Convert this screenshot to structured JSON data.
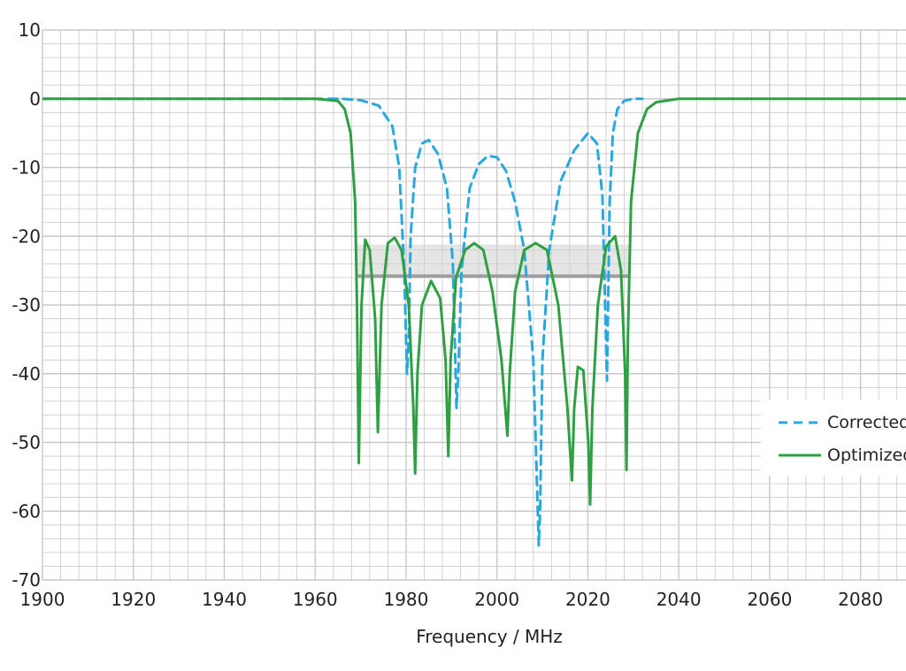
{
  "chart_data": {
    "type": "line",
    "title": "",
    "xlabel": "Frequency / MHz",
    "ylabel": "",
    "xlim": [
      1900,
      2090
    ],
    "ylim": [
      -70,
      10
    ],
    "xticks": [
      1900,
      1920,
      1940,
      1960,
      1980,
      2000,
      2020,
      2040,
      2060,
      2080
    ],
    "yticks": [
      10,
      0,
      -10,
      -20,
      -30,
      -40,
      -50,
      -60,
      -70
    ],
    "grid": true,
    "legend_position": "right",
    "colors": {
      "corrected": "#29a8e0",
      "optimized": "#2ea043",
      "band": "#9e9e9e",
      "grid": "#c8c8c8"
    },
    "spec_band": {
      "x": [
        1969,
        2029
      ],
      "y_top": -21.2,
      "y_bottom": -25.8
    },
    "series": [
      {
        "name": "Corrected",
        "style": "dashed",
        "x": [
          1900,
          1960,
          1966,
          1970,
          1974,
          1977,
          1978.5,
          1979.6,
          1980.2,
          1980.6,
          1981,
          1982,
          1983.5,
          1985,
          1987,
          1989,
          1990.3,
          1991.1,
          1991.5,
          1992.2,
          1994,
          1996,
          1998,
          2000,
          2002,
          2004,
          2006,
          2008,
          2009.2,
          2009.5,
          2010,
          2011.5,
          2014,
          2017,
          2020,
          2022,
          2023.2,
          2023.8,
          2024.2,
          2024.8,
          2025.5,
          2026.5,
          2028,
          2030,
          2032
        ],
        "y": [
          0,
          0,
          0,
          -0.2,
          -1,
          -4,
          -10,
          -25,
          -40,
          -35,
          -20,
          -10,
          -6.5,
          -6,
          -8,
          -13,
          -24,
          -45,
          -40,
          -25,
          -13,
          -9.5,
          -8.3,
          -8.5,
          -10.5,
          -15,
          -22,
          -38,
          -65,
          -60,
          -38,
          -22,
          -12,
          -7.5,
          -5,
          -6.5,
          -14,
          -30,
          -41,
          -15,
          -5,
          -1.5,
          -0.3,
          0,
          0
        ]
      },
      {
        "name": "Optimized",
        "style": "solid",
        "x": [
          1900,
          1960,
          1965,
          1966.5,
          1967.8,
          1968.8,
          1969.2,
          1969.6,
          1970.2,
          1971,
          1972,
          1973.2,
          1973.8,
          1974.6,
          1976,
          1977.5,
          1979,
          1980.6,
          1981.6,
          1982,
          1982.5,
          1983.5,
          1985.5,
          1987.5,
          1988.7,
          1989.3,
          1989.8,
          1991,
          1993,
          1995,
          1997,
          1999,
          2001,
          2002.3,
          2002.8,
          2004,
          2006,
          2008.5,
          2011,
          2013.5,
          2015.5,
          2016.5,
          2017,
          2017.8,
          2019,
          2020.1,
          2020.5,
          2021,
          2022.2,
          2024,
          2026,
          2027.3,
          2028.2,
          2028.5,
          2028.8,
          2029.5,
          2031,
          2033,
          2035,
          2040,
          2090
        ],
        "y": [
          0,
          0,
          -0.3,
          -1.5,
          -5,
          -15,
          -30,
          -53,
          -30,
          -20.5,
          -22,
          -32,
          -48.5,
          -30,
          -21,
          -20.2,
          -22,
          -30,
          -45,
          -54.5,
          -40,
          -30,
          -26.5,
          -29,
          -38,
          -52,
          -38,
          -26,
          -22,
          -21,
          -22,
          -28,
          -38,
          -49,
          -40,
          -28,
          -22,
          -21,
          -22,
          -30,
          -45,
          -55.5,
          -45,
          -39,
          -39.5,
          -50,
          -59,
          -45,
          -30,
          -21.5,
          -20,
          -25,
          -40,
          -54,
          -35,
          -15,
          -5,
          -1.5,
          -0.5,
          0,
          0
        ]
      }
    ]
  }
}
